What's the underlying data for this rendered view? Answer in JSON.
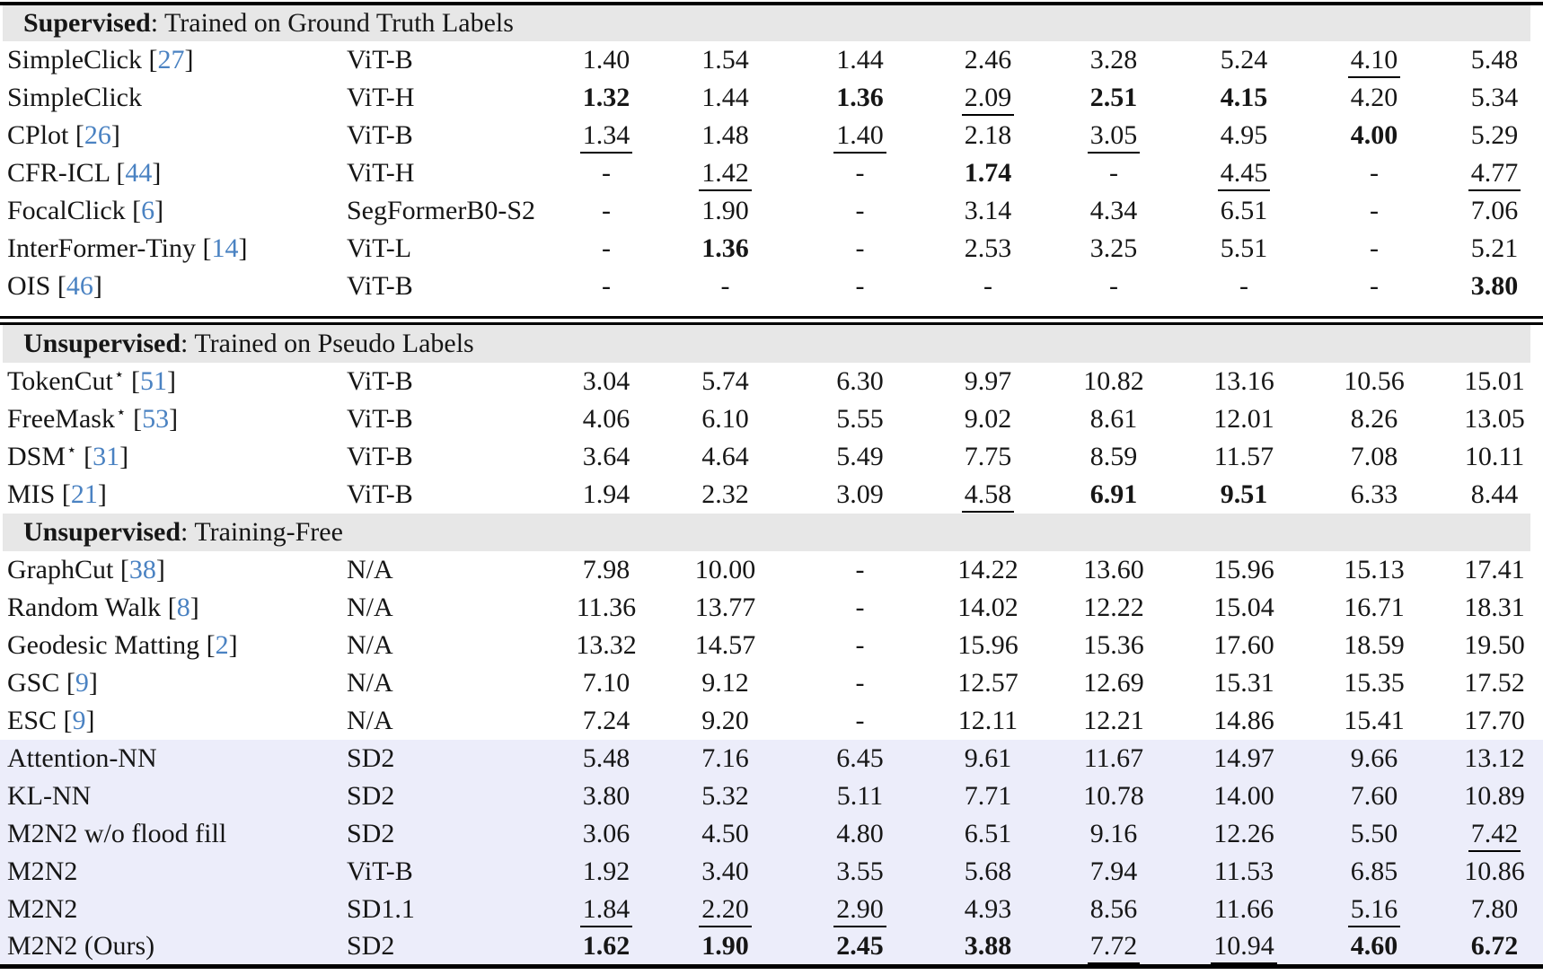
{
  "colors": {
    "section_band_bg": "#e7e7e7",
    "highlight_row_bg": "#ecedfa",
    "citation_blue": "#4a82c2",
    "rule_black": "#000000"
  },
  "table": {
    "sections": [
      {
        "header": {
          "keyword": "Supervised",
          "description": ": Trained on Ground Truth Labels"
        },
        "rows": [
          {
            "method": "SimpleClick",
            "cite": "27",
            "backbone": "ViT-B",
            "values": [
              "1.40",
              "1.54",
              "1.44",
              "2.46",
              "3.28",
              "5.24",
              "u:4.10",
              "5.48"
            ]
          },
          {
            "method": "SimpleClick",
            "backbone": "ViT-H",
            "values": [
              "b:1.32",
              "1.44",
              "b:1.36",
              "u:2.09",
              "b:2.51",
              "b:4.15",
              "4.20",
              "5.34"
            ]
          },
          {
            "method": "CPlot",
            "cite": "26",
            "backbone": "ViT-B",
            "values": [
              "u:1.34",
              "1.48",
              "u:1.40",
              "2.18",
              "u:3.05",
              "4.95",
              "b:4.00",
              "5.29"
            ]
          },
          {
            "method": "CFR-ICL",
            "cite": "44",
            "backbone": "ViT-H",
            "values": [
              "-",
              "u:1.42",
              "-",
              "b:1.74",
              "-",
              "u:4.45",
              "-",
              "u:4.77"
            ]
          },
          {
            "method": "FocalClick",
            "cite": "6",
            "backbone": "SegFormerB0-S2",
            "values": [
              "-",
              "1.90",
              "-",
              "3.14",
              "4.34",
              "6.51",
              "-",
              "7.06"
            ]
          },
          {
            "method": "InterFormer-Tiny",
            "cite": "14",
            "backbone": "ViT-L",
            "values": [
              "-",
              "b:1.36",
              "-",
              "2.53",
              "3.25",
              "5.51",
              "-",
              "5.21"
            ]
          },
          {
            "method": "OIS",
            "cite": "46",
            "backbone": "ViT-B",
            "values": [
              "-",
              "-",
              "-",
              "-",
              "-",
              "-",
              "-",
              "b:3.80"
            ]
          }
        ]
      },
      {
        "double_rule_before": true,
        "header": {
          "keyword": "Unsupervised",
          "description": ": Trained on Pseudo Labels"
        },
        "rows": [
          {
            "method": "TokenCut",
            "star": true,
            "cite": "51",
            "backbone": "ViT-B",
            "values": [
              "3.04",
              "5.74",
              "6.30",
              "9.97",
              "10.82",
              "13.16",
              "10.56",
              "15.01"
            ]
          },
          {
            "method": "FreeMask",
            "star": true,
            "cite": "53",
            "backbone": "ViT-B",
            "values": [
              "4.06",
              "6.10",
              "5.55",
              "9.02",
              "8.61",
              "12.01",
              "8.26",
              "13.05"
            ]
          },
          {
            "method": "DSM",
            "star": true,
            "cite": "31",
            "backbone": "ViT-B",
            "values": [
              "3.64",
              "4.64",
              "5.49",
              "7.75",
              "8.59",
              "11.57",
              "7.08",
              "10.11"
            ]
          },
          {
            "method": "MIS",
            "cite": "21",
            "backbone": "ViT-B",
            "values": [
              "1.94",
              "2.32",
              "3.09",
              "u:4.58",
              "b:6.91",
              "b:9.51",
              "6.33",
              "8.44"
            ]
          }
        ]
      },
      {
        "header": {
          "keyword": "Unsupervised",
          "description": ": Training-Free"
        },
        "rows": [
          {
            "method": "GraphCut",
            "cite": "38",
            "backbone": "N/A",
            "values": [
              "7.98",
              "10.00",
              "-",
              "14.22",
              "13.60",
              "15.96",
              "15.13",
              "17.41"
            ]
          },
          {
            "method": "Random Walk",
            "cite": "8",
            "backbone": "N/A",
            "values": [
              "11.36",
              "13.77",
              "-",
              "14.02",
              "12.22",
              "15.04",
              "16.71",
              "18.31"
            ]
          },
          {
            "method": "Geodesic Matting",
            "cite": "2",
            "backbone": "N/A",
            "values": [
              "13.32",
              "14.57",
              "-",
              "15.96",
              "15.36",
              "17.60",
              "18.59",
              "19.50"
            ]
          },
          {
            "method": "GSC",
            "cite": "9",
            "backbone": "N/A",
            "values": [
              "7.10",
              "9.12",
              "-",
              "12.57",
              "12.69",
              "15.31",
              "15.35",
              "17.52"
            ]
          },
          {
            "method": "ESC",
            "cite": "9",
            "backbone": "N/A",
            "values": [
              "7.24",
              "9.20",
              "-",
              "12.11",
              "12.21",
              "14.86",
              "15.41",
              "17.70"
            ]
          },
          {
            "method": "Attention-NN",
            "backbone": "SD2",
            "highlight": true,
            "values": [
              "5.48",
              "7.16",
              "6.45",
              "9.61",
              "11.67",
              "14.97",
              "9.66",
              "13.12"
            ]
          },
          {
            "method": "KL-NN",
            "backbone": "SD2",
            "highlight": true,
            "values": [
              "3.80",
              "5.32",
              "5.11",
              "7.71",
              "10.78",
              "14.00",
              "7.60",
              "10.89"
            ]
          },
          {
            "method": "M2N2 w/o flood fill",
            "backbone": "SD2",
            "highlight": true,
            "values": [
              "3.06",
              "4.50",
              "4.80",
              "6.51",
              "9.16",
              "12.26",
              "5.50",
              "u:7.42"
            ]
          },
          {
            "method": "M2N2",
            "backbone": "ViT-B",
            "highlight": true,
            "values": [
              "1.92",
              "3.40",
              "3.55",
              "5.68",
              "7.94",
              "11.53",
              "6.85",
              "10.86"
            ]
          },
          {
            "method": "M2N2",
            "backbone": "SD1.1",
            "highlight": true,
            "values": [
              "u:1.84",
              "u:2.20",
              "u:2.90",
              "4.93",
              "8.56",
              "11.66",
              "u:5.16",
              "7.80"
            ]
          },
          {
            "method": "M2N2 (Ours)",
            "backbone": "SD2",
            "highlight": true,
            "values": [
              "b:1.62",
              "b:1.90",
              "b:2.45",
              "b:3.88",
              "u:7.72",
              "u:10.94",
              "b:4.60",
              "b:6.72"
            ]
          }
        ]
      }
    ]
  }
}
